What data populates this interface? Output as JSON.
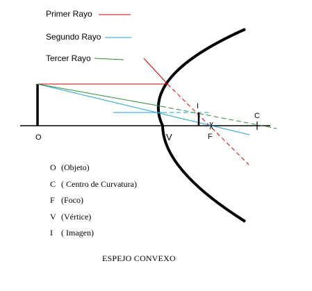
{
  "legend": {
    "ray1": {
      "label": "Primer Rayo",
      "color": "#cc0000"
    },
    "ray2": {
      "label": "Segundo Rayo",
      "color": "#1e9ed8"
    },
    "ray3": {
      "label": "Tercer Rayo",
      "color": "#2e8b3a"
    }
  },
  "points": {
    "object": "O",
    "vertex": "V",
    "focus": "F",
    "center": "C",
    "image": "I"
  },
  "glossary": [
    {
      "symbol": "O",
      "text": "(Objeto)"
    },
    {
      "symbol": "C",
      "text": "( Centro de Curvatura)"
    },
    {
      "symbol": "F",
      "text": "(Foco)"
    },
    {
      "symbol": "V",
      "text": "(Vértice)"
    },
    {
      "symbol": "I",
      "text": "( Imagen)"
    }
  ],
  "caption": "ESPEJO CONVEXO"
}
